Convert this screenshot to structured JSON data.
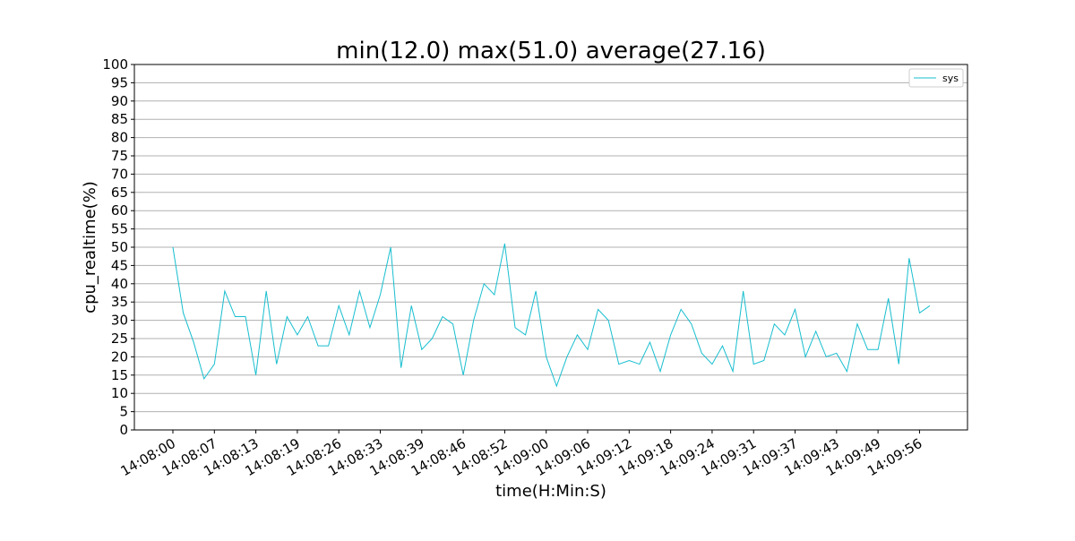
{
  "chart_data": {
    "type": "line",
    "title": "min(12.0) max(51.0) average(27.16)",
    "xlabel": "time(H:Min:S)",
    "ylabel": "cpu_realtime(%)",
    "ylim": [
      0,
      100
    ],
    "yticks": [
      0,
      5,
      10,
      15,
      20,
      25,
      30,
      35,
      40,
      45,
      50,
      55,
      60,
      65,
      70,
      75,
      80,
      85,
      90,
      95,
      100
    ],
    "x_tick_labels": [
      "14:08:00",
      "14:08:07",
      "14:08:13",
      "14:08:19",
      "14:08:26",
      "14:08:33",
      "14:08:39",
      "14:08:46",
      "14:08:52",
      "14:09:00",
      "14:09:06",
      "14:09:12",
      "14:09:18",
      "14:09:24",
      "14:09:31",
      "14:09:37",
      "14:09:43",
      "14:09:49",
      "14:09:56"
    ],
    "x_tick_every": 4,
    "grid": "horizontal",
    "legend_position": "top-right",
    "series": [
      {
        "name": "sys",
        "color": "#17becf",
        "values": [
          50,
          32,
          24,
          14,
          18,
          38,
          31,
          31,
          15,
          38,
          18,
          31,
          26,
          31,
          23,
          23,
          34,
          26,
          38,
          28,
          37,
          50,
          17,
          34,
          22,
          25,
          31,
          29,
          15,
          30,
          40,
          37,
          51,
          28,
          26,
          38,
          20,
          12,
          20,
          26,
          22,
          33,
          30,
          18,
          19,
          18,
          24,
          16,
          26,
          33,
          29,
          21,
          18,
          23,
          16,
          38,
          18,
          19,
          29,
          26,
          33,
          20,
          27,
          20,
          21,
          16,
          29,
          22,
          22,
          36,
          18,
          47,
          32,
          34
        ]
      }
    ]
  }
}
